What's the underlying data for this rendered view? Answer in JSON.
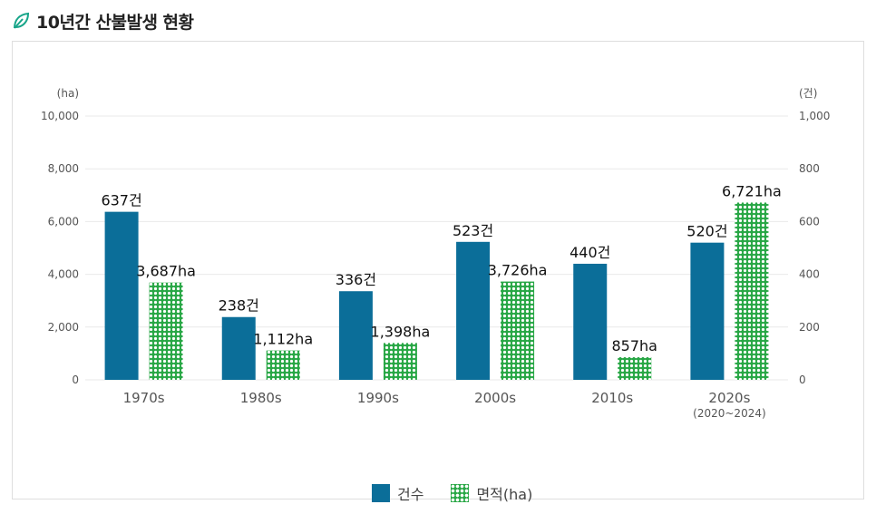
{
  "header": {
    "title": "10년간 산불발생 현황"
  },
  "legend": {
    "count_label": "건수",
    "area_label": "면적(ha)"
  },
  "colors": {
    "count": "#0b6e99",
    "area": "#28a745",
    "grid": "#e9e9e9",
    "axis_text": "#555555"
  },
  "chart_data": {
    "type": "bar",
    "title": "10년간 산불발생 현황",
    "categories": [
      "1970s",
      "1980s",
      "1990s",
      "2000s",
      "2010s",
      "2020s"
    ],
    "category_sublabels": [
      "",
      "",
      "",
      "",
      "",
      "(2020~2024)"
    ],
    "left_axis": {
      "unit_label": "(ha)",
      "ylim": [
        0,
        10000
      ],
      "ticks": [
        0,
        2000,
        4000,
        6000,
        8000,
        10000
      ],
      "tick_labels": [
        "0",
        "2,000",
        "4,000",
        "6,000",
        "8,000",
        "10,000"
      ]
    },
    "right_axis": {
      "unit_label": "(건)",
      "ylim": [
        0,
        1000
      ],
      "ticks": [
        0,
        200,
        400,
        600,
        800,
        1000
      ],
      "tick_labels": [
        "0",
        "200",
        "400",
        "600",
        "800",
        "1,000"
      ]
    },
    "series": [
      {
        "name": "건수",
        "axis": "right",
        "values": [
          637,
          238,
          336,
          523,
          440,
          520
        ],
        "labels": [
          "637건",
          "238건",
          "336건",
          "523건",
          "440건",
          "520건"
        ]
      },
      {
        "name": "면적(ha)",
        "axis": "left",
        "values": [
          3687,
          1112,
          1398,
          3726,
          857,
          6721
        ],
        "labels": [
          "3,687ha",
          "1,112ha",
          "1,398ha",
          "3,726ha",
          "857ha",
          "6,721ha"
        ]
      }
    ],
    "grid": true,
    "legend_position": "bottom-center"
  }
}
